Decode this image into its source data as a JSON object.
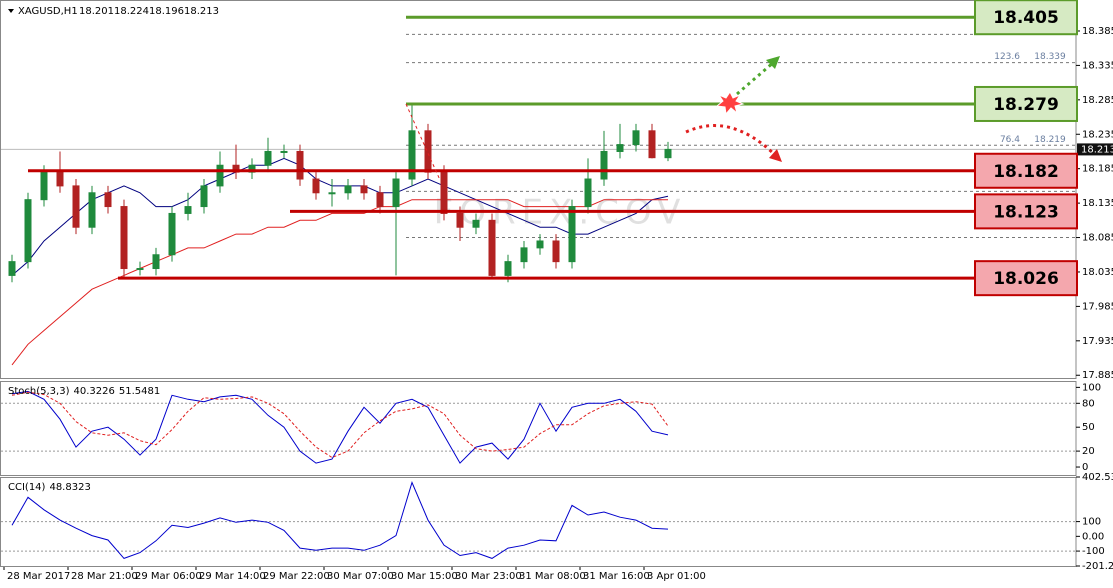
{
  "chart_data": [
    {
      "type": "candlestick",
      "symbol": "XAGUSD,H1",
      "header_values": [
        18.201,
        18.224,
        18.196,
        18.213
      ],
      "watermark": "FOREX.COV",
      "categories": [
        null,
        "28 Mar 2017",
        null,
        null,
        null,
        "28 Mar 21:00",
        null,
        null,
        null,
        "29 Mar 06:00",
        null,
        null,
        null,
        "29 Mar 14:00",
        null,
        null,
        null,
        "29 Mar 22:00",
        null,
        null,
        null,
        "30 Mar 07:00",
        null,
        null,
        null,
        "30 Mar 15:00",
        null,
        null,
        null,
        "30 Mar 23:00",
        null,
        null,
        null,
        "31 Mar 08:00",
        null,
        null,
        null,
        "31 Mar 16:00",
        null,
        null,
        null,
        "3 Apr 01:00"
      ],
      "open": [
        18.03,
        18.05,
        18.14,
        18.18,
        18.16,
        18.1,
        18.15,
        18.13,
        18.04,
        18.04,
        18.06,
        18.12,
        18.13,
        18.16,
        18.19,
        18.18,
        18.19,
        18.21,
        18.21,
        18.17,
        18.15,
        18.15,
        18.16,
        18.15,
        18.13,
        18.17,
        18.24,
        18.18,
        18.12,
        18.1,
        18.11,
        18.03,
        18.05,
        18.07,
        18.08,
        18.05,
        18.13,
        18.17,
        18.21,
        18.22,
        18.24,
        18.201
      ],
      "high": [
        18.06,
        18.15,
        18.19,
        18.21,
        18.17,
        18.16,
        18.16,
        18.14,
        18.05,
        18.07,
        18.13,
        18.15,
        18.17,
        18.21,
        18.22,
        18.2,
        18.23,
        18.22,
        18.22,
        18.18,
        18.17,
        18.17,
        18.17,
        18.16,
        18.18,
        18.279,
        18.25,
        18.19,
        18.13,
        18.12,
        18.12,
        18.06,
        18.08,
        18.09,
        18.09,
        18.14,
        18.2,
        18.24,
        18.25,
        18.25,
        18.25,
        18.224
      ],
      "low": [
        18.02,
        18.04,
        18.13,
        18.15,
        18.09,
        18.09,
        18.12,
        18.026,
        18.03,
        18.03,
        18.05,
        18.11,
        18.12,
        18.15,
        18.17,
        18.17,
        18.18,
        18.2,
        18.16,
        18.14,
        18.13,
        18.14,
        18.14,
        18.12,
        18.03,
        18.16,
        18.17,
        18.11,
        18.08,
        18.09,
        18.026,
        18.02,
        18.04,
        18.06,
        18.04,
        18.04,
        18.12,
        18.16,
        18.2,
        18.21,
        18.2,
        18.196
      ],
      "close": [
        18.05,
        18.14,
        18.18,
        18.16,
        18.1,
        18.15,
        18.13,
        18.04,
        18.04,
        18.06,
        18.12,
        18.13,
        18.16,
        18.19,
        18.18,
        18.19,
        18.21,
        18.21,
        18.17,
        18.15,
        18.15,
        18.16,
        18.15,
        18.13,
        18.17,
        18.24,
        18.18,
        18.12,
        18.1,
        18.11,
        18.03,
        18.05,
        18.07,
        18.08,
        18.05,
        18.13,
        18.17,
        18.21,
        18.22,
        18.24,
        18.201,
        18.213
      ],
      "up_color": "#1f8a3c",
      "down_color": "#b22222",
      "series": [
        {
          "color": "#00007f",
          "values": [
            18.03,
            18.05,
            18.08,
            18.1,
            18.12,
            18.14,
            18.15,
            18.16,
            18.15,
            18.13,
            18.13,
            18.14,
            18.16,
            18.17,
            18.18,
            18.19,
            18.19,
            18.2,
            18.19,
            18.17,
            18.16,
            18.16,
            18.16,
            18.15,
            18.15,
            18.16,
            18.17,
            18.16,
            18.15,
            18.14,
            18.13,
            18.12,
            18.11,
            18.1,
            18.1,
            18.09,
            18.09,
            18.1,
            18.11,
            18.12,
            18.14,
            18.145
          ]
        },
        {
          "color": "#e02020",
          "values": [
            17.9,
            17.93,
            17.95,
            17.97,
            17.99,
            18.01,
            18.02,
            18.03,
            18.04,
            18.05,
            18.06,
            18.07,
            18.07,
            18.08,
            18.09,
            18.09,
            18.1,
            18.1,
            18.11,
            18.11,
            18.12,
            18.12,
            18.12,
            18.13,
            18.13,
            18.14,
            18.14,
            18.14,
            18.14,
            18.14,
            18.14,
            18.14,
            18.13,
            18.13,
            18.13,
            18.13,
            18.13,
            18.14,
            18.14,
            18.14,
            18.14,
            18.14
          ]
        }
      ],
      "ylim": [
        17.881,
        18.43
      ],
      "yticks": [
        18.385,
        18.335,
        18.285,
        18.235,
        18.185,
        18.135,
        18.085,
        18.035,
        17.985,
        17.935,
        17.885
      ],
      "last_price": 18.213,
      "fib_levels": [
        {
          "value": 18.38
        },
        {
          "value": 18.339,
          "label": "123.6"
        },
        {
          "value": 18.219,
          "label": "76.4"
        },
        {
          "value": 18.152
        },
        {
          "value": 18.085
        }
      ],
      "levels": [
        {
          "value": 18.405,
          "color": "#5b9b2a",
          "fill": "#d6eac3"
        },
        {
          "value": 18.279,
          "color": "#5b9b2a",
          "fill": "#d6eac3"
        },
        {
          "value": 18.182,
          "color": "#c00000",
          "fill": "#f4a7ad"
        },
        {
          "value": 18.123,
          "color": "#c00000",
          "fill": "#f4a7ad"
        },
        {
          "value": 18.026,
          "color": "#c00000",
          "fill": "#f4a7ad"
        }
      ]
    },
    {
      "type": "line",
      "title": "Stoch(5,3,3)",
      "header_values": [
        40.3226,
        51.5481
      ],
      "series": [
        {
          "color": "#0000cc",
          "values": [
            92,
            95,
            85,
            60,
            25,
            45,
            50,
            35,
            15,
            35,
            90,
            85,
            82,
            88,
            90,
            85,
            65,
            50,
            20,
            5,
            10,
            45,
            75,
            55,
            80,
            85,
            75,
            40,
            5,
            25,
            30,
            10,
            35,
            80,
            45,
            75,
            80,
            80,
            85,
            70,
            45,
            40.3226
          ]
        },
        {
          "color": "#e02020",
          "dashed": true,
          "values": [
            90,
            94,
            91,
            80,
            57,
            43,
            40,
            43,
            33,
            28,
            47,
            70,
            87,
            85,
            86,
            88,
            80,
            67,
            45,
            25,
            12,
            20,
            43,
            58,
            70,
            73,
            78,
            67,
            40,
            23,
            20,
            22,
            25,
            42,
            53,
            53,
            67,
            77,
            80,
            82,
            79,
            51.5481
          ]
        }
      ],
      "ylim": [
        -10,
        108
      ],
      "yticks": [
        100,
        80,
        50,
        20,
        0
      ],
      "dotted_levels": [
        80,
        20
      ]
    },
    {
      "type": "line",
      "title": "CCI(14)",
      "header_values": [
        48.8323
      ],
      "series": [
        {
          "color": "#0000cc",
          "values": [
            75,
            265,
            180,
            110,
            55,
            5,
            -25,
            -150,
            -110,
            -30,
            75,
            60,
            90,
            125,
            95,
            110,
            95,
            40,
            -80,
            -95,
            -80,
            -80,
            -95,
            -60,
            5,
            365,
            110,
            -60,
            -130,
            -110,
            -150,
            -80,
            -60,
            -25,
            -30,
            210,
            145,
            165,
            130,
            110,
            55,
            48.8323
          ]
        }
      ],
      "ylim": [
        -201.24,
        402.5398
      ],
      "yticks": [
        402.5398,
        100,
        {
          "value": 0,
          "label": "0.00"
        },
        -100,
        -201.24
      ],
      "dotted_levels": [
        100,
        -100
      ]
    }
  ]
}
